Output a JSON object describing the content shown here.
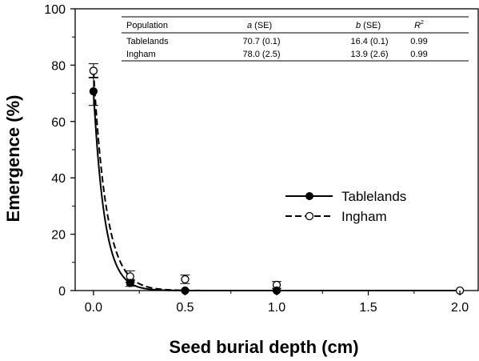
{
  "chart_data": {
    "type": "scatter",
    "xlabel": "Seed burial depth (cm)",
    "ylabel": "Emergence (%)",
    "xlim": [
      -0.1,
      2.1
    ],
    "ylim": [
      0,
      100
    ],
    "xticks": [
      "0.0",
      "0.5",
      "1.0",
      "1.5",
      "2.0"
    ],
    "yticks": [
      "0",
      "20",
      "40",
      "60",
      "80",
      "100"
    ],
    "grid": false,
    "legend_position": "center-right",
    "series": [
      {
        "name": "Tablelands",
        "marker": "filled-circle",
        "line": "solid",
        "x": [
          0.0,
          0.2,
          0.5,
          1.0
        ],
        "y": [
          70.7,
          2.7,
          0.0,
          0.0
        ],
        "err": [
          5.0,
          1.2,
          0.0,
          0.0
        ],
        "fit": {
          "a": 70.7,
          "b": 16.4
        }
      },
      {
        "name": "Ingham",
        "marker": "open-circle",
        "line": "dashed",
        "x": [
          0.0,
          0.2,
          0.5,
          1.0,
          2.0
        ],
        "y": [
          78.0,
          5.0,
          4.0,
          2.0,
          0.0
        ],
        "err": [
          2.5,
          2.0,
          1.5,
          1.2,
          0.0
        ],
        "fit": {
          "a": 78.0,
          "b": 13.9
        }
      }
    ],
    "table": {
      "headers": [
        "Population",
        "a",
        " (SE)",
        "b",
        " (SE)",
        "R",
        "2"
      ],
      "rows": [
        [
          "Tablelands",
          "70.7 (0.1)",
          "16.4 (0.1)",
          "0.99"
        ],
        [
          "Ingham",
          "78.0 (2.5)",
          "13.9 (2.6)",
          "0.99"
        ]
      ]
    }
  }
}
